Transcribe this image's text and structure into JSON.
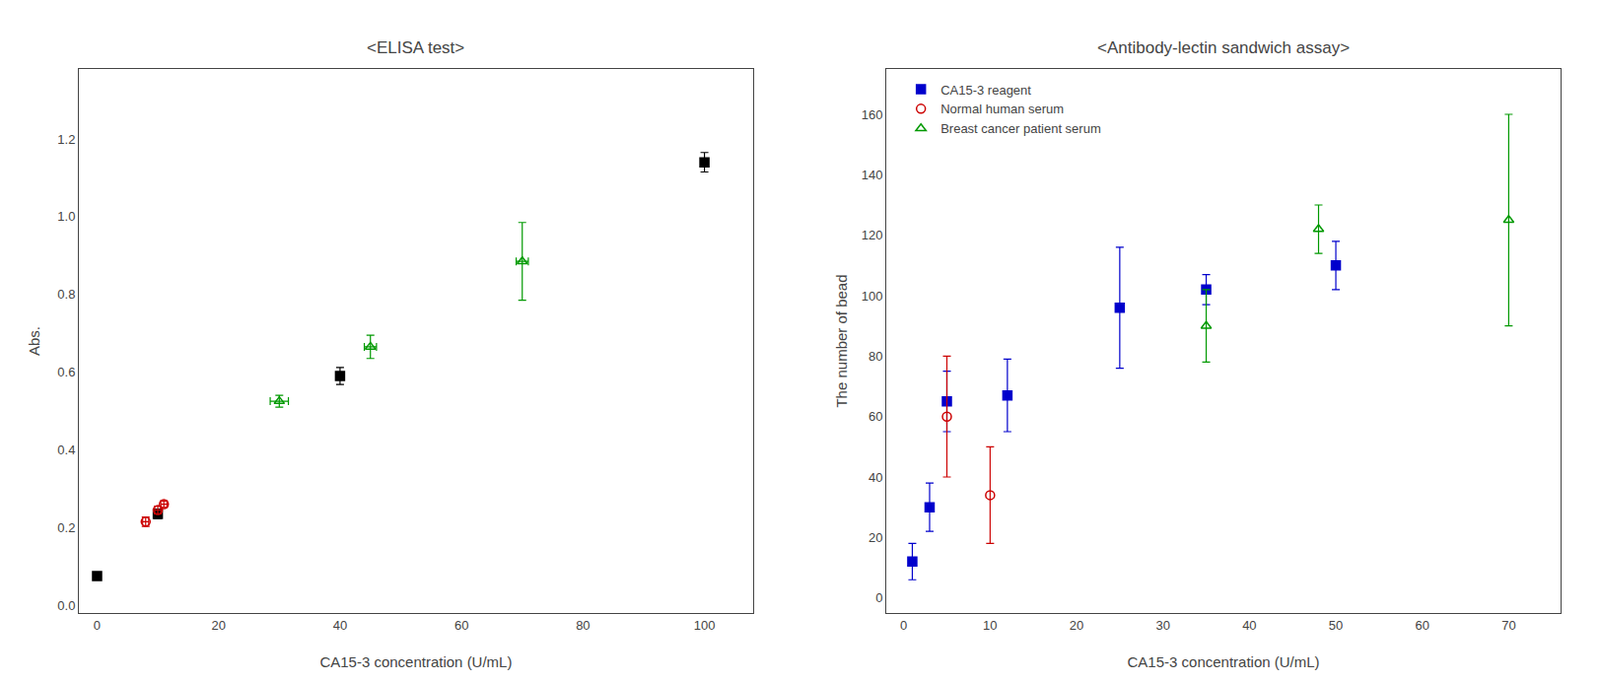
{
  "chart_data": [
    {
      "type": "scatter",
      "title": "<ELISA test>",
      "x_label": "CA15-3 concentration (U/mL)",
      "y_label": "Abs.",
      "grid": false,
      "series": [
        {
          "color": "#000000",
          "marker": "square",
          "x": [
            0,
            10,
            40,
            100
          ],
          "values": [
            0.075,
            0.235,
            0.59,
            1.14
          ],
          "yerr": [
            0.008,
            0.012,
            0.022,
            0.025
          ]
        },
        {
          "color": "#cc0000",
          "marker": "circle-open",
          "x": [
            8,
            10,
            11
          ],
          "values": [
            0.215,
            0.245,
            0.26
          ],
          "xerr": [
            0.5,
            0.5,
            0.5
          ],
          "yerr": [
            0.012,
            0.01,
            0.008
          ]
        },
        {
          "color": "#009900",
          "marker": "triangle-up-open",
          "x": [
            30,
            45,
            70
          ],
          "values": [
            0.525,
            0.665,
            0.885
          ],
          "xerr": [
            1.5,
            1.0,
            1.0
          ],
          "yerr": [
            0.015,
            0.03,
            0.1
          ]
        }
      ],
      "xlim": [
        -3,
        108
      ],
      "ylim": [
        -0.02,
        1.38
      ],
      "xticks": [
        0,
        20,
        40,
        60,
        80,
        100
      ],
      "yticks": [
        {
          "value": 0.0,
          "label": "0.0"
        },
        0.2,
        0.4,
        0.6,
        0.8,
        {
          "value": 1.0,
          "label": "1.0"
        },
        1.2
      ]
    },
    {
      "type": "scatter",
      "title": "<Antibody-lectin sandwich assay>",
      "x_label": "CA15-3 concentration (U/mL)",
      "y_label": "The number of bead",
      "grid": false,
      "legend": "upper left",
      "series": [
        {
          "name": "CA15-3 reagent",
          "color": "#0000cc",
          "marker": "square",
          "x": [
            1,
            3,
            5,
            12,
            25,
            35,
            50
          ],
          "values": [
            12,
            30,
            65,
            67,
            96,
            102,
            110
          ],
          "yerr": [
            6,
            8,
            10,
            12,
            20,
            5,
            8
          ]
        },
        {
          "name": "Normal human serum",
          "color": "#cc0000",
          "marker": "circle-open",
          "x": [
            5,
            10
          ],
          "values": [
            60,
            34
          ],
          "yerr": [
            20,
            16
          ]
        },
        {
          "name": "Breast cancer patient serum",
          "color": "#009900",
          "marker": "triangle-up-open",
          "x": [
            35,
            48,
            70
          ],
          "values": [
            90,
            122,
            125
          ],
          "yerr": [
            12,
            8,
            35
          ]
        }
      ],
      "xlim": [
        -2,
        76
      ],
      "ylim": [
        -5,
        175
      ],
      "xticks": [
        0,
        10,
        20,
        30,
        40,
        50,
        60,
        70
      ],
      "yticks": [
        0,
        20,
        40,
        60,
        80,
        100,
        120,
        140,
        160
      ]
    }
  ]
}
